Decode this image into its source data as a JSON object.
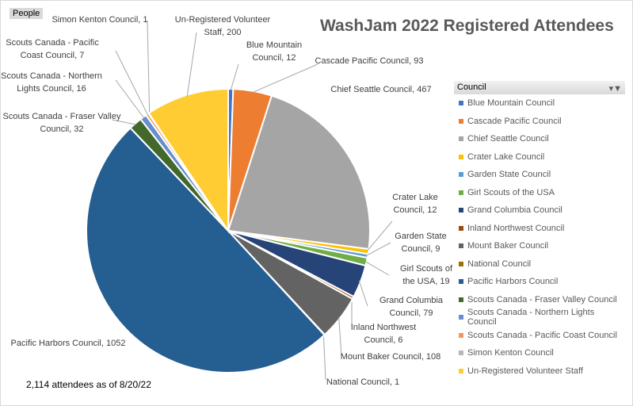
{
  "title": "WashJam 2022 Registered Attendees",
  "field_button": "People",
  "footer_note": "2,114 attendees as of 8/20/22",
  "legend": {
    "header": "Council",
    "filter_icon": "filter-dropdown-icon"
  },
  "chart_data": {
    "type": "pie",
    "title": "WashJam 2022 Registered Attendees",
    "start_angle": "12 o'clock, clockwise",
    "legend_placement": "right",
    "slices": [
      {
        "name": "Blue Mountain Council",
        "label": "Blue Mountain\nCouncil, 12",
        "value": 12,
        "color": "#4472C4"
      },
      {
        "name": "Cascade Pacific Council",
        "label": "Cascade Pacific Council, 93",
        "value": 93,
        "color": "#ED7D31"
      },
      {
        "name": "Chief Seattle Council",
        "label": "Chief Seattle Council, 467",
        "value": 467,
        "color": "#A5A5A5"
      },
      {
        "name": "Crater Lake Council",
        "label": "Crater Lake\nCouncil, 12",
        "value": 12,
        "color": "#FFC000"
      },
      {
        "name": "Garden State Council",
        "label": "Garden State\nCouncil, 9",
        "value": 9,
        "color": "#5B9BD5"
      },
      {
        "name": "Girl Scouts of the USA",
        "label": "Girl Scouts of\nthe USA, 19",
        "value": 19,
        "color": "#70AD47"
      },
      {
        "name": "Grand Columbia Council",
        "label": "Grand Columbia\nCouncil, 79",
        "value": 79,
        "color": "#264478"
      },
      {
        "name": "Inland Northwest Council",
        "label": "Inland Northwest\nCouncil, 6",
        "value": 6,
        "color": "#9E480E"
      },
      {
        "name": "Mount Baker Council",
        "label": "Mount Baker Council, 108",
        "value": 108,
        "color": "#636363"
      },
      {
        "name": "National Council",
        "label": "National Council, 1",
        "value": 1,
        "color": "#997300"
      },
      {
        "name": "Pacific Harbors Council",
        "label": "Pacific Harbors Council, 1052",
        "value": 1052,
        "color": "#255E91"
      },
      {
        "name": "Scouts Canada - Fraser Valley Council",
        "label": "Scouts Canada - Fraser Valley\nCouncil, 32",
        "value": 32,
        "color": "#43682B"
      },
      {
        "name": "Scouts Canada - Northern Lights Council",
        "label": "Scouts Canada - Northern\nLights Council, 16",
        "value": 16,
        "color": "#698ED0"
      },
      {
        "name": "Scouts Canada - Pacific Coast Council",
        "label": "Scouts Canada - Pacific\nCoast Council, 7",
        "value": 7,
        "color": "#F1975A"
      },
      {
        "name": "Simon Kenton Council",
        "label": "Simon Kenton Council, 1",
        "value": 1,
        "color": "#B7B7B7"
      },
      {
        "name": "Un-Registered Volunteer Staff",
        "label": "Un-Registered Volunteer\nStaff, 200",
        "value": 200,
        "color": "#FFCD33"
      }
    ]
  }
}
